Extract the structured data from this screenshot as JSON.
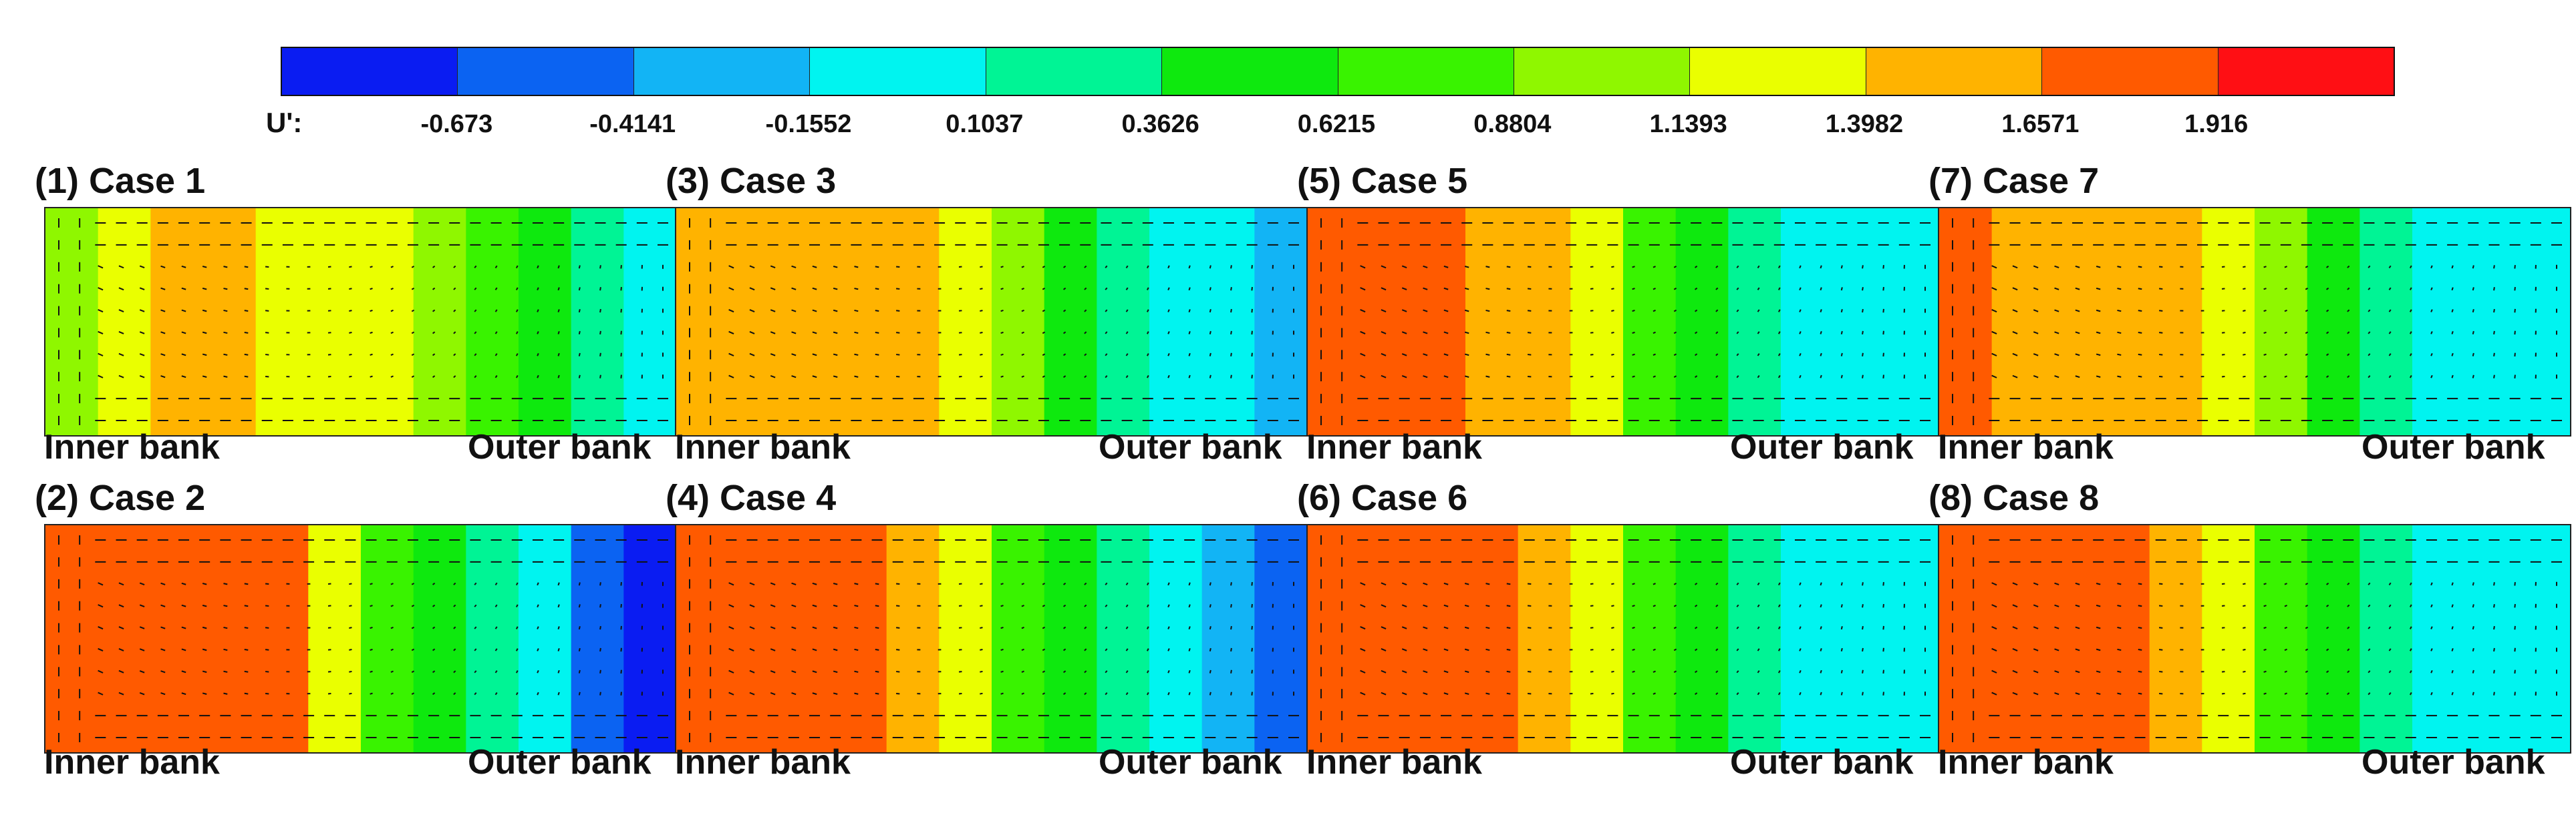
{
  "chart_data": {
    "type": "heatmap",
    "legend": {
      "title": "U':",
      "ticks": [
        "-0.673",
        "-0.4141",
        "-0.1552",
        "0.1037",
        "0.3626",
        "0.6215",
        "0.8804",
        "1.1393",
        "1.3982",
        "1.6571",
        "1.916"
      ],
      "colors": [
        "#0a1cf2",
        "#0b63f2",
        "#12b4f5",
        "#00f4f0",
        "#00f495",
        "#0ee90e",
        "#39f300",
        "#8ff700",
        "#eaff00",
        "#ffb300",
        "#ff5a00",
        "#ff0f14"
      ]
    },
    "panels": [
      {
        "title": "(1) Case 1",
        "left_label": "Inner bank",
        "right_label": "Outer bank",
        "levels": [
          7,
          8,
          9,
          9,
          8,
          8,
          8,
          7,
          6,
          5,
          4,
          3
        ]
      },
      {
        "title": "(2) Case 2",
        "left_label": "Inner bank",
        "right_label": "Outer bank",
        "levels": [
          10,
          10,
          10,
          10,
          10,
          8,
          6,
          5,
          4,
          3,
          1,
          0
        ]
      },
      {
        "title": "(3) Case 3",
        "left_label": "Inner bank",
        "right_label": "Outer bank",
        "levels": [
          9,
          9,
          9,
          9,
          9,
          8,
          7,
          5,
          4,
          3,
          3,
          2
        ]
      },
      {
        "title": "(4) Case 4",
        "left_label": "Inner bank",
        "right_label": "Outer bank",
        "levels": [
          10,
          10,
          10,
          10,
          9,
          8,
          6,
          5,
          4,
          3,
          2,
          1
        ]
      },
      {
        "title": "(5) Case 5",
        "left_label": "Inner bank",
        "right_label": "Outer bank",
        "levels": [
          10,
          10,
          10,
          9,
          9,
          8,
          6,
          5,
          4,
          3,
          3,
          3
        ]
      },
      {
        "title": "(6) Case 6",
        "left_label": "Inner bank",
        "right_label": "Outer bank",
        "levels": [
          10,
          10,
          10,
          10,
          9,
          8,
          6,
          5,
          4,
          3,
          3,
          3
        ]
      },
      {
        "title": "(7) Case 7",
        "left_label": "Inner bank",
        "right_label": "Outer bank",
        "levels": [
          10,
          9,
          9,
          9,
          9,
          8,
          7,
          5,
          4,
          3,
          3,
          3
        ]
      },
      {
        "title": "(8) Case 8",
        "left_label": "Inner bank",
        "right_label": "Outer bank",
        "levels": [
          10,
          10,
          10,
          10,
          9,
          8,
          6,
          5,
          4,
          3,
          3,
          3
        ]
      }
    ]
  }
}
